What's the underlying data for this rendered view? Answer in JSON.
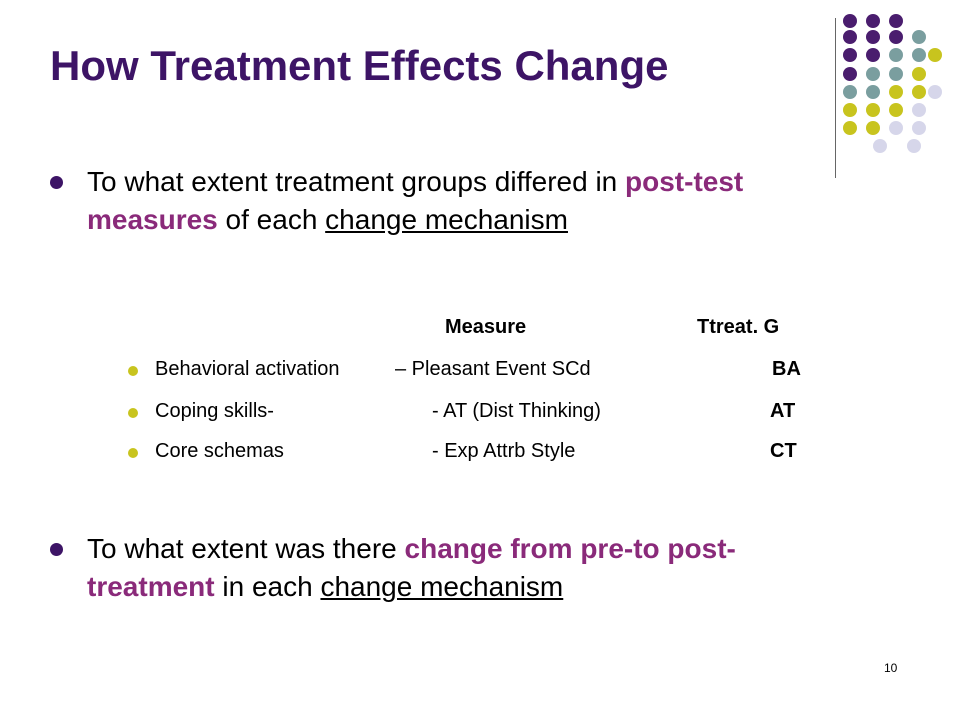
{
  "slide": {
    "title": "How Treatment Effects Change",
    "page_number": "10"
  },
  "colors": {
    "title": "#3d1466",
    "highlight": "#8a2a7a",
    "bullet_main": "#3d1466",
    "bullet_sub": "#c8c41e",
    "dot_purple": "#4a1d6e",
    "dot_teal": "#7a9e9f",
    "dot_yellow": "#c8c41e",
    "dot_lavender": "#d6d6ea"
  },
  "bullet1": {
    "pre": "To what extent treatment groups differed in ",
    "highlight": "post-test measures",
    "mid": " of each ",
    "underlined": "change mechanism"
  },
  "table": {
    "header_measure": "Measure",
    "header_group": "Ttreat. G",
    "rows": [
      {
        "mechanism": "Behavioral activation",
        "measure": "– Pleasant Event  SCd",
        "group": "BA"
      },
      {
        "mechanism": "Coping skills-",
        "measure": "- AT  (Dist Thinking)",
        "group": "AT"
      },
      {
        "mechanism": "Core schemas",
        "measure": "- Exp Attrb Style",
        "group": "CT"
      }
    ]
  },
  "bullet2": {
    "pre": "To what extent was there ",
    "highlight": "change from pre-to post- treatment",
    "mid": " in each ",
    "underlined": "change mechanism"
  }
}
